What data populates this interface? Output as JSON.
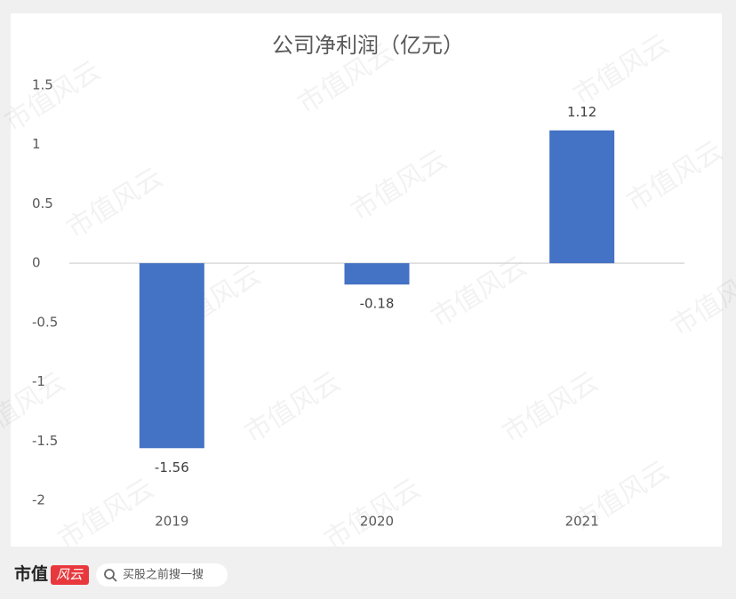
{
  "chart_data": {
    "type": "bar",
    "title": "公司净利润（亿元）",
    "categories": [
      "2019",
      "2020",
      "2021"
    ],
    "values": [
      -1.56,
      -0.18,
      1.12
    ],
    "color": "#4472c4",
    "ylim": [
      -2,
      1.5
    ],
    "yticks": [
      -2,
      -1.5,
      -1,
      -0.5,
      0,
      0.5,
      1,
      1.5
    ],
    "grid": false,
    "data_labels": true
  },
  "watermark": "市值风云",
  "footer": {
    "logo_text": "市值",
    "logo_badge": "风云",
    "search_placeholder": "买股之前搜一搜"
  }
}
